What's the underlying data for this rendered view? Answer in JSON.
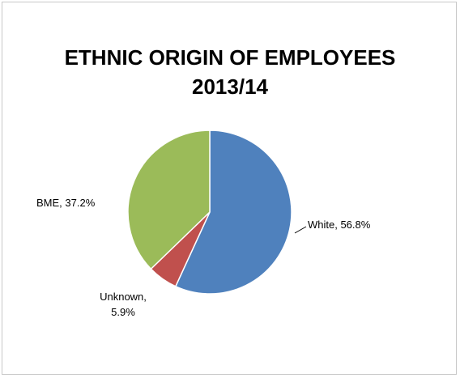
{
  "chart_data": {
    "type": "pie",
    "title_lines": [
      "ETHNIC ORIGIN OF EMPLOYEES",
      "2013/14"
    ],
    "slices": [
      {
        "label": "White",
        "value": 56.8,
        "display": "White, 56.8%",
        "color": "#4f81bd"
      },
      {
        "label": "Unknown",
        "value": 5.9,
        "display_lines": [
          "Unknown,",
          "5.9%"
        ],
        "color": "#c0504d"
      },
      {
        "label": "BME",
        "value": 37.2,
        "display": "BME, 37.2%",
        "color": "#9bbb59"
      }
    ],
    "start_angle": "12 o'clock",
    "direction": "clockwise",
    "legend": "none"
  }
}
